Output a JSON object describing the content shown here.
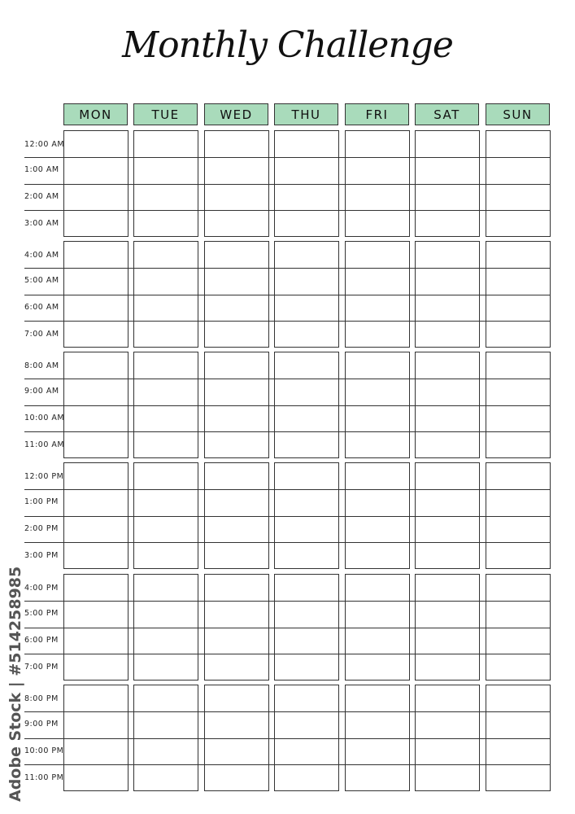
{
  "title": "Monthly Challenge",
  "days": [
    "MON",
    "TUE",
    "WED",
    "THU",
    "FRI",
    "SAT",
    "SUN"
  ],
  "times": [
    "12:00 AM",
    "1:00 AM",
    "2:00 AM",
    "3:00 AM",
    "4:00 AM",
    "5:00 AM",
    "6:00 AM",
    "7:00 AM",
    "8:00 AM",
    "9:00 AM",
    "10:00 AM",
    "11:00 AM",
    "12:00 PM",
    "1:00 PM",
    "2:00 PM",
    "3:00 PM",
    "4:00 PM",
    "5:00 PM",
    "6:00 PM",
    "7:00 PM",
    "8:00 PM",
    "9:00 PM",
    "10:00 PM",
    "11:00 PM"
  ],
  "colors": {
    "header_fill": "#a9dbbb",
    "line": "#333333"
  },
  "watermark": "Adobe Stock | #514258985"
}
